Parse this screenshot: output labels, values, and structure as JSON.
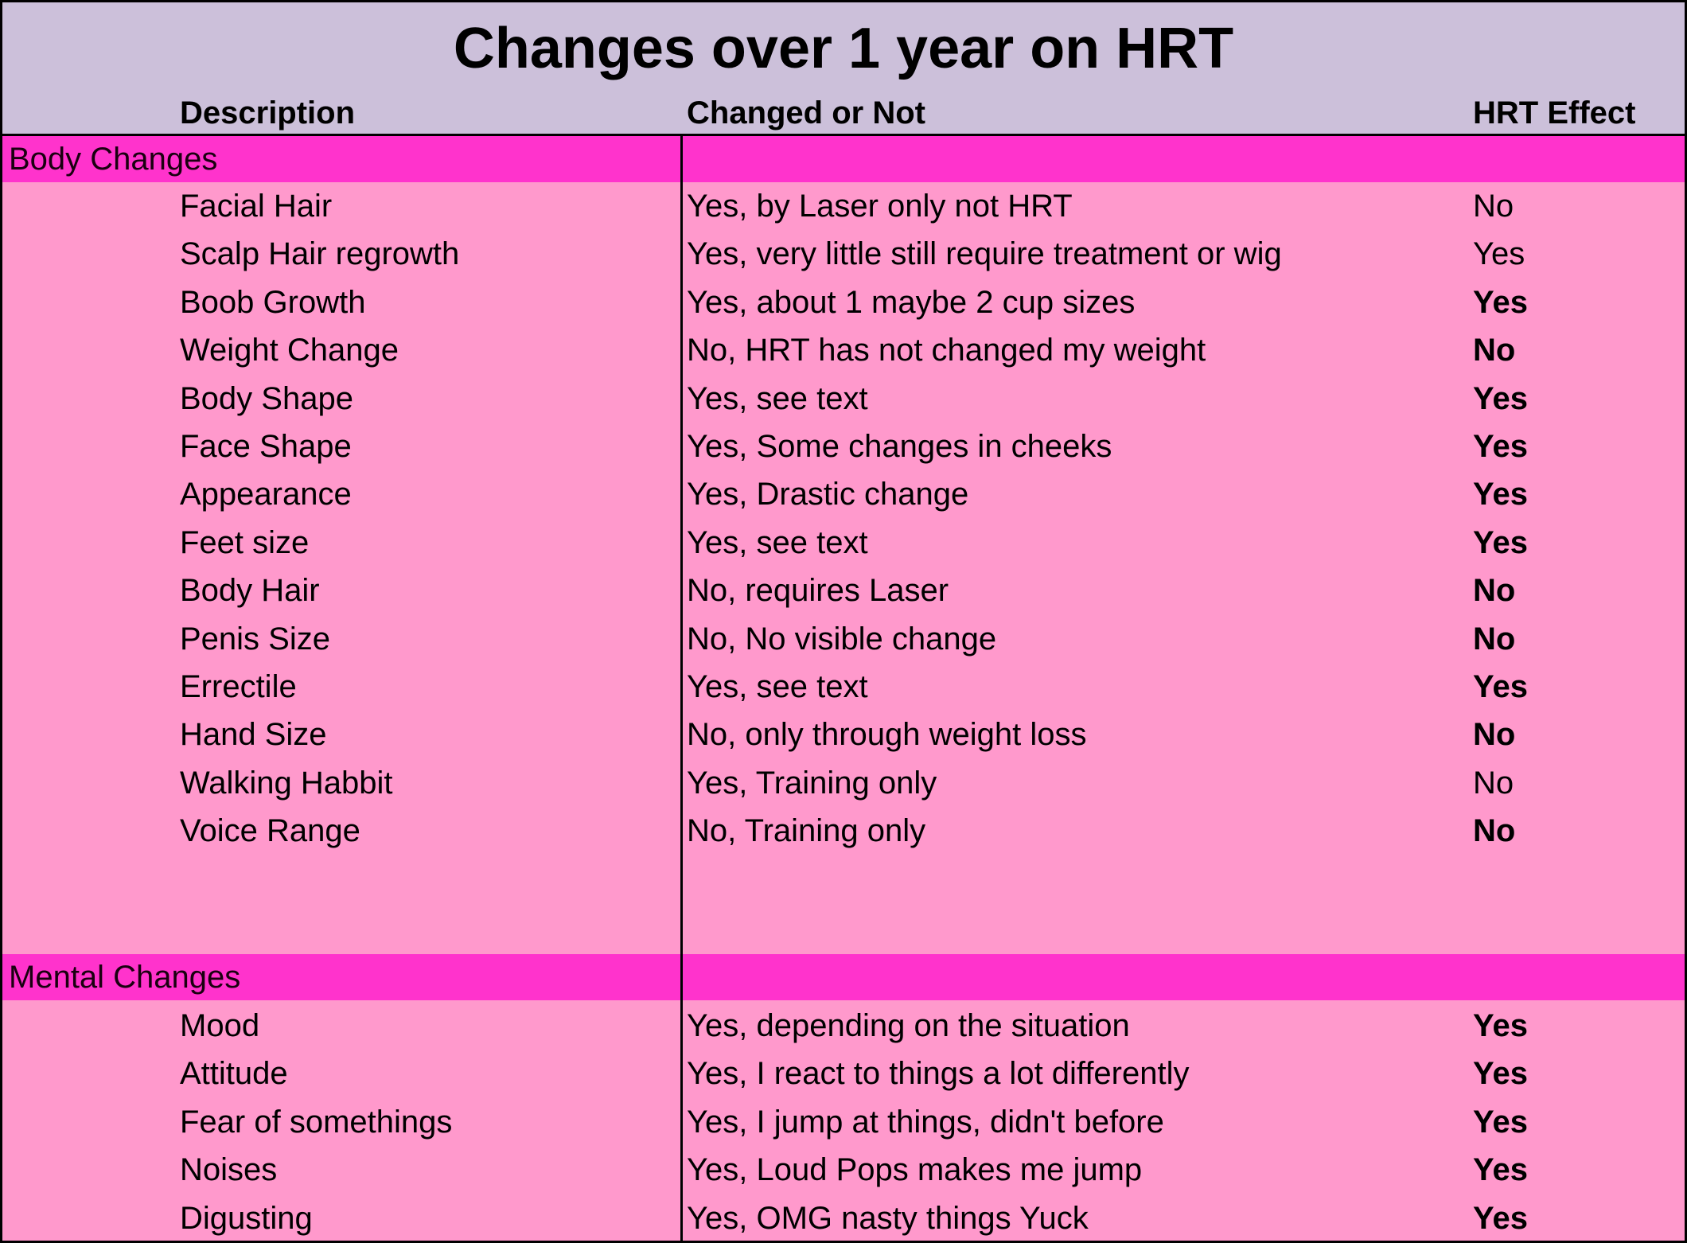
{
  "title": "Changes over 1 year on HRT",
  "columns": {
    "description": "Description",
    "changed": "Changed or Not",
    "effect": "HRT Effect"
  },
  "colors": {
    "header_bg": "#ccc0da",
    "section_bg": "#ff33cc",
    "row_bg": "#ff99cc"
  },
  "sections": [
    {
      "label": "Body Changes",
      "rows": [
        {
          "description": "Facial Hair",
          "changed": "Yes, by Laser only not HRT",
          "effect": "No",
          "effect_bold": false
        },
        {
          "description": "Scalp Hair regrowth",
          "changed": "Yes, very little still require treatment or wig",
          "effect": "Yes",
          "effect_bold": false
        },
        {
          "description": "Boob Growth",
          "changed": "Yes, about 1 maybe 2 cup sizes",
          "effect": "Yes",
          "effect_bold": true
        },
        {
          "description": "Weight Change",
          "changed": "No, HRT has not changed my weight",
          "effect": "No",
          "effect_bold": true
        },
        {
          "description": "Body Shape",
          "changed": "Yes, see text",
          "effect": "Yes",
          "effect_bold": true
        },
        {
          "description": "Face Shape",
          "changed": "Yes, Some changes in cheeks",
          "effect": "Yes",
          "effect_bold": true
        },
        {
          "description": "Appearance",
          "changed": "Yes, Drastic change",
          "effect": "Yes",
          "effect_bold": true
        },
        {
          "description": "Feet size",
          "changed": "Yes, see text",
          "effect": "Yes",
          "effect_bold": true
        },
        {
          "description": "Body Hair",
          "changed": "No, requires Laser",
          "effect": "No",
          "effect_bold": true
        },
        {
          "description": "Penis Size",
          "changed": "No, No visible change",
          "effect": "No",
          "effect_bold": true
        },
        {
          "description": "Errectile",
          "changed": "Yes, see text",
          "effect": "Yes",
          "effect_bold": true
        },
        {
          "description": "Hand Size",
          "changed": "No, only through weight loss",
          "effect": "No",
          "effect_bold": true
        },
        {
          "description": "Walking Habbit",
          "changed": "Yes, Training only",
          "effect": "No",
          "effect_bold": false
        },
        {
          "description": "Voice Range",
          "changed": "No, Training only",
          "effect": "No",
          "effect_bold": true
        }
      ]
    },
    {
      "label": "Mental Changes",
      "rows": [
        {
          "description": "Mood",
          "changed": "Yes, depending on the situation",
          "effect": "Yes",
          "effect_bold": true
        },
        {
          "description": "Attitude",
          "changed": "Yes, I react to things a lot differently",
          "effect": "Yes",
          "effect_bold": true
        },
        {
          "description": "Fear of somethings",
          "changed": "Yes, I jump at things, didn't before",
          "effect": "Yes",
          "effect_bold": true
        },
        {
          "description": "Noises",
          "changed": "Yes, Loud Pops makes me jump",
          "effect": "Yes",
          "effect_bold": true
        },
        {
          "description": "Digusting",
          "changed": "Yes, OMG nasty things Yuck",
          "effect": "Yes",
          "effect_bold": true
        }
      ]
    }
  ]
}
